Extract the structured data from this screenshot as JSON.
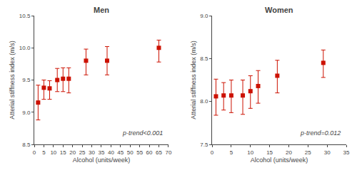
{
  "chart_data": [
    {
      "type": "scatter",
      "title": "Men",
      "xlabel": "Alcohol (units/week)",
      "ylabel": "Atterial stiffness index (m/s)",
      "x": [
        2,
        5,
        8,
        12,
        15,
        18,
        27,
        38,
        65
      ],
      "values": [
        9.15,
        9.38,
        9.37,
        9.5,
        9.52,
        9.52,
        9.8,
        9.8,
        10.0
      ],
      "error_minus": [
        0.27,
        0.18,
        0.17,
        0.18,
        0.2,
        0.22,
        0.22,
        0.22,
        0.22
      ],
      "error_plus": [
        0.27,
        0.12,
        0.12,
        0.18,
        0.17,
        0.17,
        0.18,
        0.22,
        0.12
      ],
      "xlim": [
        0,
        70
      ],
      "ylim": [
        8.5,
        10.5
      ],
      "xticks": [
        0,
        5,
        10,
        15,
        20,
        25,
        30,
        35,
        40,
        45,
        50,
        55,
        60,
        65,
        70
      ],
      "yticks": [
        8.5,
        {
          "value": 9,
          "label": "9.0"
        },
        9.5,
        {
          "value": 10,
          "label": "10.0"
        },
        10.5
      ],
      "annotation": "p-trend<0.001",
      "color": "#cc1100",
      "marker": "square",
      "grid": false
    },
    {
      "type": "scatter",
      "title": "Women",
      "xlabel": "Alcohol (units/week)",
      "ylabel": "Atterial stiffness index (m/s)",
      "x": [
        1,
        3,
        5,
        8,
        10,
        12,
        17,
        29
      ],
      "values": [
        8.06,
        8.07,
        8.07,
        8.07,
        8.12,
        8.18,
        8.3,
        8.45
      ],
      "error_minus": [
        0.22,
        0.17,
        0.2,
        0.22,
        0.2,
        0.2,
        0.2,
        0.17
      ],
      "error_plus": [
        0.2,
        0.15,
        0.18,
        0.18,
        0.18,
        0.18,
        0.18,
        0.15
      ],
      "xlim": [
        0,
        35
      ],
      "ylim": [
        7.5,
        9.0
      ],
      "xticks": [
        0,
        5,
        10,
        15,
        20,
        25,
        30,
        35
      ],
      "yticks": [
        7.5,
        {
          "value": 8,
          "label": "8.0"
        },
        8.5,
        {
          "value": 9,
          "label": "9.0"
        }
      ],
      "annotation": "p-trend=0.012",
      "color": "#cc1100",
      "marker": "square",
      "grid": false
    }
  ]
}
